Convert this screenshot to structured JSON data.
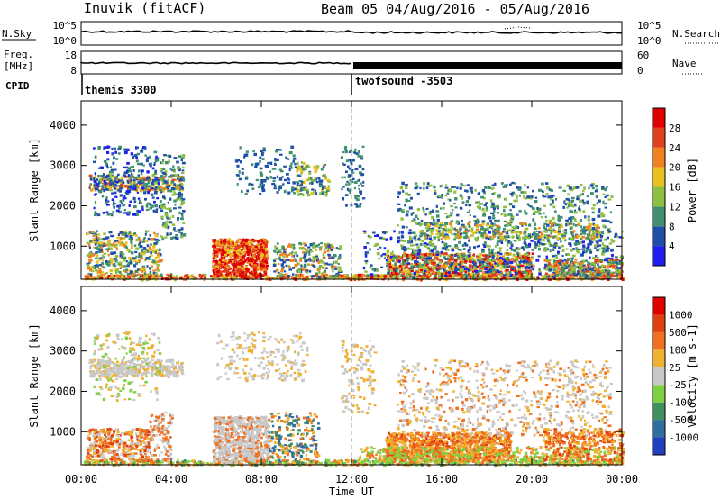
{
  "header": {
    "station": "Inuvik (fitACF)",
    "beam_date": "Beam 05  04/Aug/2016 - 05/Aug/2016"
  },
  "noise_panel": {
    "left_label": "N.Sky",
    "left_ticks": [
      "10^5",
      "10^0"
    ],
    "right_ticks": [
      "10^5",
      "10^0"
    ],
    "right_label": "N.Search"
  },
  "freq_panel": {
    "left_label_line1": "Freq.",
    "left_label_line2": "[MHz]",
    "left_ticks": [
      "18",
      "8"
    ],
    "right_ticks": [
      "60",
      "0"
    ],
    "right_label": "Nave"
  },
  "cpid": {
    "label": "CPID",
    "segments": [
      {
        "name": "themis 3300",
        "start_hour": 0
      },
      {
        "name": "twofsound -3503",
        "start_hour": 12
      }
    ]
  },
  "chart_data": [
    {
      "type": "heatmap",
      "quantity": "Power",
      "ylabel": "Slant Range [km]",
      "yticks": [
        1000,
        2000,
        3000,
        4000
      ],
      "ylim": [
        180,
        4600
      ],
      "xlim": [
        0,
        24
      ],
      "colorbar_label": "Power [dB]",
      "colorbar_ticks": [
        "4",
        "8",
        "12",
        "16",
        "20",
        "24",
        "28"
      ],
      "colorbar_colors": [
        "#1f1ff0",
        "#1f4fa8",
        "#3f8f70",
        "#8fbf3f",
        "#e8c020",
        "#f08020",
        "#e04020",
        "#e00000"
      ]
    },
    {
      "type": "heatmap",
      "quantity": "Velocity",
      "ylabel": "Slant Range [km]",
      "yticks": [
        1000,
        2000,
        3000,
        4000
      ],
      "ylim": [
        180,
        4600
      ],
      "xlim": [
        0,
        24
      ],
      "colorbar_label": "Velocity [m s-1]",
      "colorbar_ticks": [
        "1000",
        "500",
        "100",
        "25",
        "-25",
        "-100",
        "-500",
        "-1000"
      ],
      "colorbar_colors": [
        "#2040c0",
        "#2f6fa0",
        "#3f8f5f",
        "#7fd040",
        "#c8c8c8",
        "#f0b030",
        "#f07020",
        "#e04010",
        "#e00000"
      ],
      "xticks": [
        "00:00",
        "04:00",
        "08:00",
        "12:00",
        "16:00",
        "20:00",
        "00:00"
      ],
      "xlabel": "Time UT"
    }
  ]
}
